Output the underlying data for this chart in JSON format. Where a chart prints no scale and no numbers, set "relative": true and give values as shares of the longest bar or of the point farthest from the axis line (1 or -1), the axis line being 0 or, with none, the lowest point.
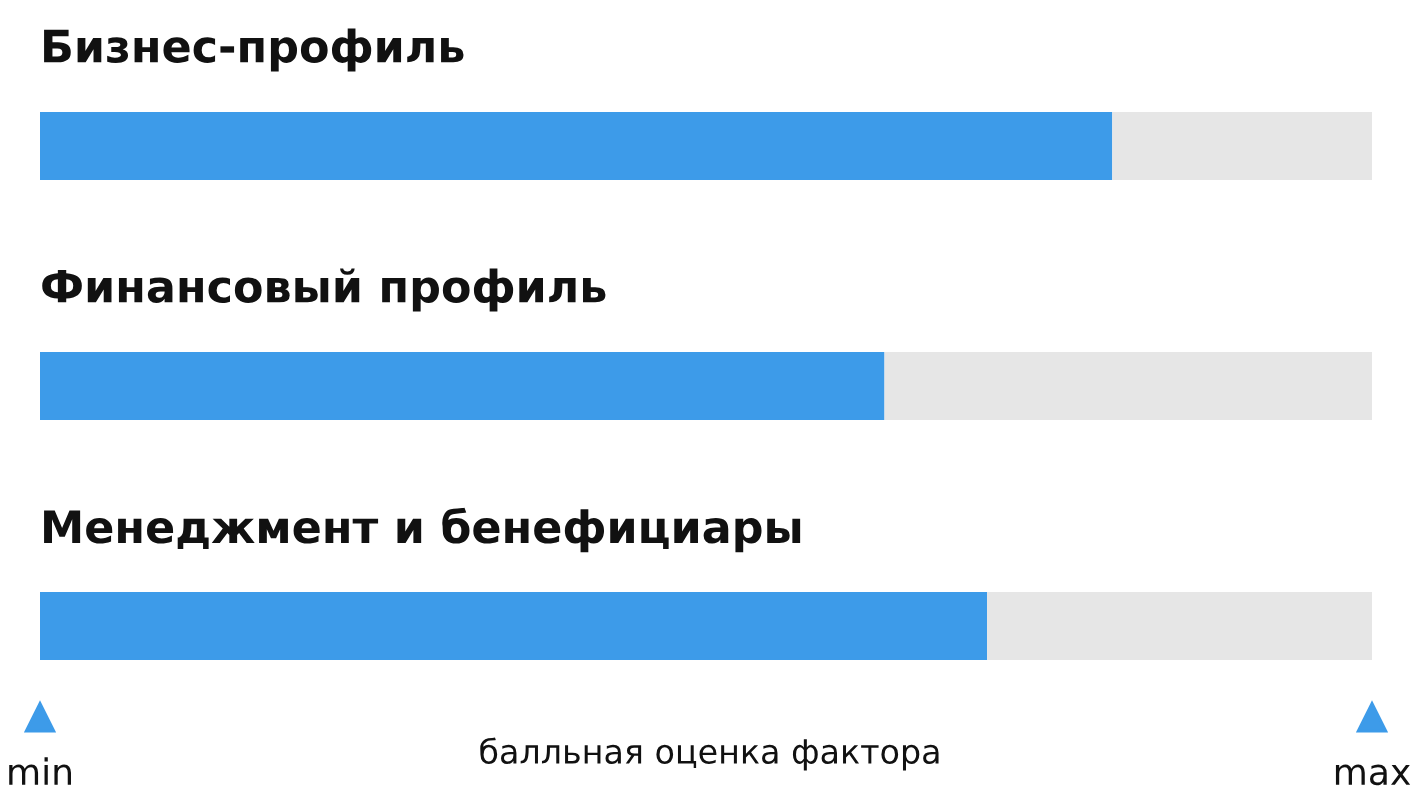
{
  "chart_data": {
    "type": "bar",
    "orientation": "horizontal",
    "stacked": true,
    "relative": true,
    "categories": [
      "Бизнес-профиль",
      "Финансовый профиль",
      "Менеджмент и бенефициары"
    ],
    "series": [
      {
        "color": "#3d9be9",
        "values": [
          0.805,
          0.634,
          0.711
        ]
      },
      {
        "color": "#e6e6e6",
        "values": [
          0.195,
          0.366,
          0.289
        ]
      }
    ],
    "annotations": [
      "min",
      "max"
    ],
    "xlabel": "балльная оценка фактора"
  }
}
